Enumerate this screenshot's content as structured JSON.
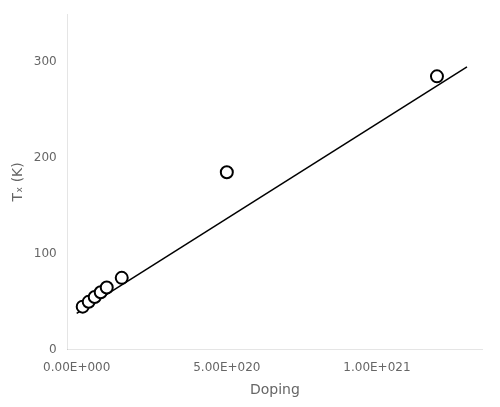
{
  "chart_data": {
    "type": "scatter",
    "xlabel": "Doping",
    "ylabel": "Tₓ (K)",
    "series": [
      {
        "type": "line",
        "color": "black",
        "line_style": "solid",
        "x": [
          0,
          1.3e+21
        ],
        "values": [
          38,
          295
        ]
      },
      {
        "type": "scatter",
        "color": "black",
        "marker": "hollow_circle",
        "x": [
          2e+19,
          4e+19,
          6e+19,
          8e+19,
          1e+20,
          1.5e+20,
          5e+20,
          1.2e+21
        ],
        "values": [
          45,
          50,
          55,
          60,
          65,
          75,
          185,
          285
        ]
      }
    ],
    "xlim": [
      -3e+19,
      1.35e+21
    ],
    "ylim": [
      0,
      350
    ],
    "xticks": [
      {
        "value": 0,
        "label": "0.00E+000"
      },
      {
        "value": 5e+20,
        "label": "5.00E+020"
      },
      {
        "value": 1e+21,
        "label": "1.00E+021"
      }
    ],
    "yticks": [
      0,
      100,
      200,
      300
    ],
    "grid": false
  }
}
